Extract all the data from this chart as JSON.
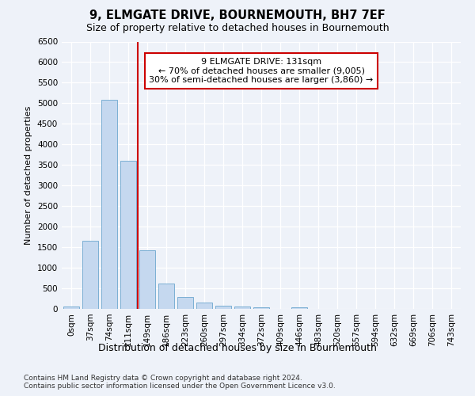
{
  "title": "9, ELMGATE DRIVE, BOURNEMOUTH, BH7 7EF",
  "subtitle": "Size of property relative to detached houses in Bournemouth",
  "xlabel": "Distribution of detached houses by size in Bournemouth",
  "ylabel": "Number of detached properties",
  "categories": [
    "0sqm",
    "37sqm",
    "74sqm",
    "111sqm",
    "149sqm",
    "186sqm",
    "223sqm",
    "260sqm",
    "297sqm",
    "334sqm",
    "372sqm",
    "409sqm",
    "446sqm",
    "483sqm",
    "520sqm",
    "557sqm",
    "594sqm",
    "632sqm",
    "669sqm",
    "706sqm",
    "743sqm"
  ],
  "values": [
    50,
    1650,
    5080,
    3600,
    1430,
    620,
    290,
    155,
    80,
    50,
    30,
    0,
    30,
    0,
    0,
    0,
    0,
    0,
    0,
    0,
    0
  ],
  "bar_color": "#c5d8ef",
  "bar_edge_color": "#7bafd4",
  "vline_color": "#cc0000",
  "annotation_text": "9 ELMGATE DRIVE: 131sqm\n← 70% of detached houses are smaller (9,005)\n30% of semi-detached houses are larger (3,860) →",
  "annotation_box_color": "#ffffff",
  "annotation_box_edge": "#cc0000",
  "ylim": [
    0,
    6500
  ],
  "yticks": [
    0,
    500,
    1000,
    1500,
    2000,
    2500,
    3000,
    3500,
    4000,
    4500,
    5000,
    5500,
    6000,
    6500
  ],
  "background_color": "#eef2f9",
  "plot_bg_color": "#eef2f9",
  "footer": "Contains HM Land Registry data © Crown copyright and database right 2024.\nContains public sector information licensed under the Open Government Licence v3.0.",
  "title_fontsize": 10.5,
  "subtitle_fontsize": 9,
  "xlabel_fontsize": 9,
  "ylabel_fontsize": 8,
  "tick_fontsize": 7.5,
  "annotation_fontsize": 8,
  "footer_fontsize": 6.5
}
